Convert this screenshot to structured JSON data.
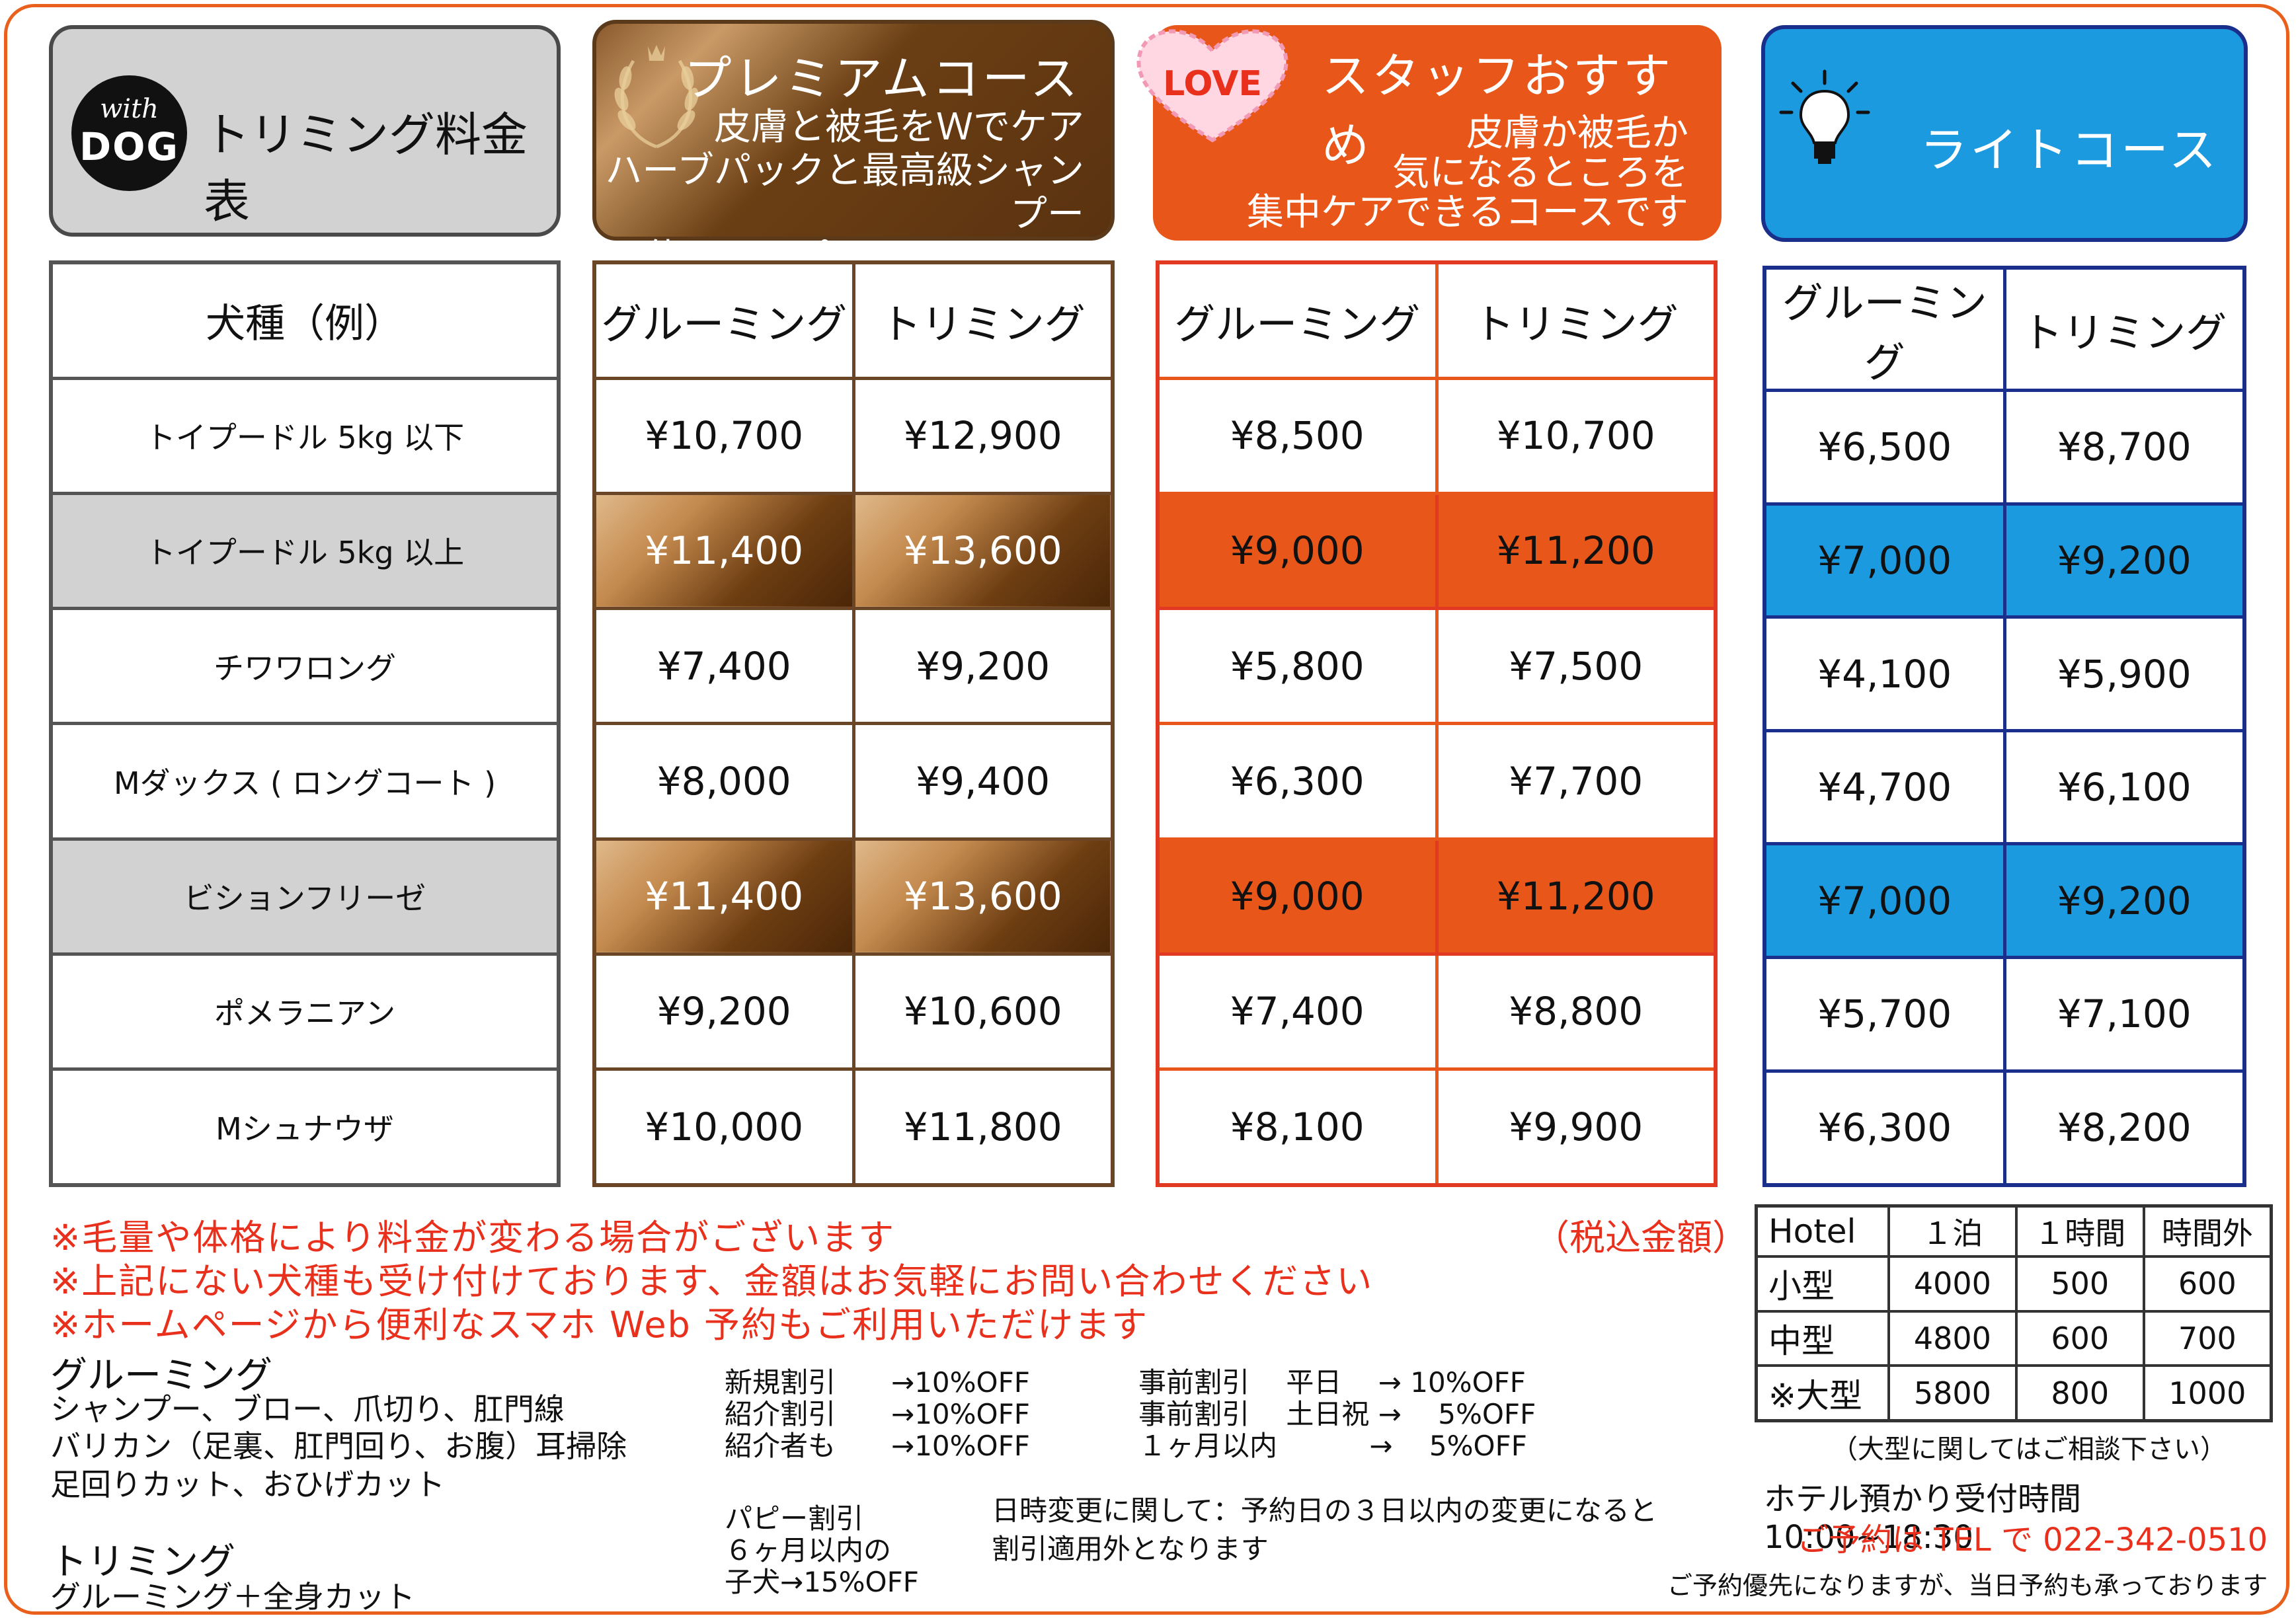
{
  "header": {
    "logo_with": "with",
    "logo_dog": "DOG",
    "title": "トリミング料金表",
    "premium": {
      "title": "プレミアムコース",
      "desc": [
        "皮膚と被毛をＷでケア",
        "ハーブパックと最高級シャンプー",
        "を使用したプレミアムコース"
      ]
    },
    "staff": {
      "badge": "LOVE",
      "title": "スタッフおすすめ",
      "desc": [
        "皮膚か被毛か",
        "気になるところを",
        "集中ケアできるコースです"
      ]
    },
    "light": {
      "title": "ライトコース"
    }
  },
  "table": {
    "dog_header": "犬種（例）",
    "col_grooming": "グルーミング",
    "col_trimming": "トリミング",
    "breeds": [
      "トイプードル 5kg 以下",
      "トイプードル 5kg 以上",
      "チワワロング",
      "Mダックス ( ロングコート )",
      "ビションフリーゼ",
      "ポメラニアン",
      "Mシュナウザ"
    ],
    "premium": [
      [
        "¥10,700",
        "¥12,900"
      ],
      [
        "¥11,400",
        "¥13,600"
      ],
      [
        "¥7,400",
        "¥9,200"
      ],
      [
        "¥8,000",
        "¥9,400"
      ],
      [
        "¥11,400",
        "¥13,600"
      ],
      [
        "¥9,200",
        "¥10,600"
      ],
      [
        "¥10,000",
        "¥11,800"
      ]
    ],
    "staff": [
      [
        "¥8,500",
        "¥10,700"
      ],
      [
        "¥9,000",
        "¥11,200"
      ],
      [
        "¥5,800",
        "¥7,500"
      ],
      [
        "¥6,300",
        "¥7,700"
      ],
      [
        "¥9,000",
        "¥11,200"
      ],
      [
        "¥7,400",
        "¥8,800"
      ],
      [
        "¥8,100",
        "¥9,900"
      ]
    ],
    "light": [
      [
        "¥6,500",
        "¥8,700"
      ],
      [
        "¥7,000",
        "¥9,200"
      ],
      [
        "¥4,100",
        "¥5,900"
      ],
      [
        "¥4,700",
        "¥6,100"
      ],
      [
        "¥7,000",
        "¥9,200"
      ],
      [
        "¥5,700",
        "¥7,100"
      ],
      [
        "¥6,300",
        "¥8,200"
      ]
    ]
  },
  "notes": [
    "※毛量や体格により料金が変わる場合がございます",
    "※上記にない犬種も受け付けております、金額はお気軽にお問い合わせください",
    "※ホームページから便利なスマホ Web 予約もご利用いただけます"
  ],
  "tax": "（税込金額）",
  "grooming": {
    "heading": "グルーミング",
    "lines": [
      "シャンプー、ブロー、爪切り、肛門線",
      "バリカン（足裏、肛門回り、お腹）耳掃除",
      "足回りカット、おひげカット"
    ]
  },
  "trimming": {
    "heading": "トリミング",
    "line": "グルーミング＋全身カット"
  },
  "discounts": {
    "left": [
      "新規割引　　→10%OFF",
      "紹介割引　　→10%OFF",
      "紹介者も　　→10%OFF"
    ],
    "right": [
      "事前割引　 平日　 → 10%OFF",
      "事前割引　 土日祝 →　 5%OFF",
      "１ヶ月以内　　　 →　 5%OFF"
    ],
    "puppy": [
      "パピー割引",
      "６ヶ月以内の",
      "子犬→15%OFF"
    ],
    "change": [
      "日時変更に関して：予約日の３日以内の変更になると",
      "割引適用外となります"
    ]
  },
  "hotel": {
    "headers": [
      "Hotel",
      "１泊",
      "１時間",
      "時間外"
    ],
    "rows": [
      [
        "小型",
        "4000",
        "500",
        "600"
      ],
      [
        "中型",
        "4800",
        "600",
        "700"
      ],
      [
        "※大型",
        "5800",
        "800",
        "1000"
      ]
    ],
    "note": "（大型に関してはご相談下さい）",
    "hours": "ホテル預かり受付時間 10:00~18:30",
    "tel": "ご予約は TEL で 022-342-0510",
    "priority": "ご予約優先になりますが、当日予約も承っております"
  },
  "colors": {
    "frame": "#e8601c",
    "premium": "#6b4626",
    "staff": "#e8561a",
    "light": "#1b9ae0",
    "light_border": "#1a2f8c",
    "note_red": "#e8301c"
  }
}
